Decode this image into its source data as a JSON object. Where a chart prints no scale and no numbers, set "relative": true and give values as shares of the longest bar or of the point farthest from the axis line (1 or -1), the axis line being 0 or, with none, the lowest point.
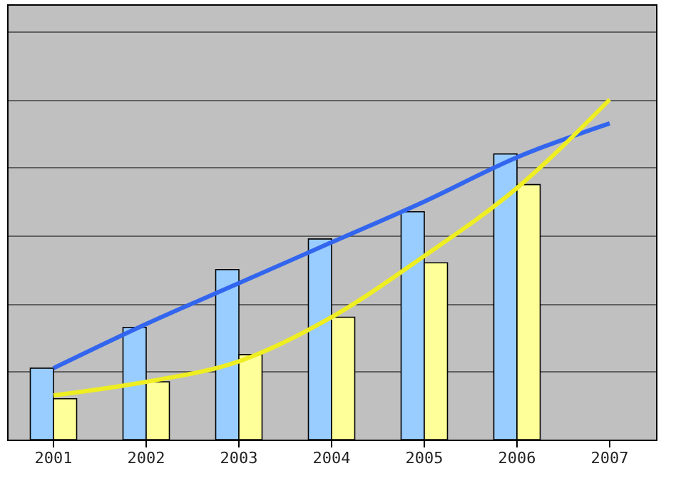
{
  "chart_data": {
    "type": "bar",
    "relative": true,
    "grid": "y",
    "legend": false,
    "categories": [
      "2001",
      "2002",
      "2003",
      "2004",
      "2005",
      "2006",
      "2007"
    ],
    "series": [
      {
        "color": "#99ccff",
        "values": [
          0.21,
          0.33,
          0.5,
          0.59,
          0.67,
          0.84,
          null
        ]
      },
      {
        "color": "#ffff99",
        "values": [
          0.12,
          0.17,
          0.25,
          0.36,
          0.52,
          0.75,
          null
        ]
      },
      {
        "type": "line",
        "color": "#3366ee",
        "values": [
          0.21,
          0.34,
          0.46,
          0.58,
          0.7,
          0.83,
          0.93
        ]
      },
      {
        "type": "line",
        "color": "#eeee22",
        "values": [
          0.13,
          0.17,
          0.23,
          0.36,
          0.54,
          0.74,
          1.0
        ]
      }
    ]
  }
}
